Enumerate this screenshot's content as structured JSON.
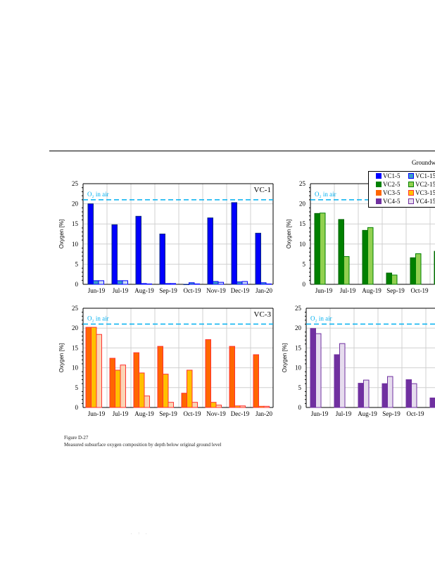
{
  "header": {
    "text": "Groundw"
  },
  "caption": {
    "figure": "Figure D-27",
    "text": "Measured subsurface oxygen composition by depth below original ground level"
  },
  "footer": {
    "text": ". : ."
  },
  "legend": {
    "items": [
      {
        "label": "VC1-5",
        "color": "#0000ff",
        "border": "#0000ff"
      },
      {
        "label": "VC1-15",
        "color": "#3a9cc8",
        "border": "#0000ff"
      },
      {
        "label": "VC2-5",
        "color": "#008000",
        "border": "#008000"
      },
      {
        "label": "VC2-15",
        "color": "#92d050",
        "border": "#008000"
      },
      {
        "label": "VC3-5",
        "color": "#ff6600",
        "border": "#ff6600"
      },
      {
        "label": "VC3-15",
        "color": "#ffc000",
        "border": "#ff3333"
      },
      {
        "label": "VC4-5",
        "color": "#7030a0",
        "border": "#7030a0"
      },
      {
        "label": "VC4-15",
        "color": "#e6dcee",
        "border": "#7030a0"
      }
    ]
  },
  "chart_data": [
    {
      "type": "bar",
      "title": "VC-1",
      "ylabel": "Oxygen [%]",
      "ylim": [
        0,
        25
      ],
      "yticks": [
        "0",
        "5",
        "10",
        "15",
        "20",
        "25"
      ],
      "grid": true,
      "reference": {
        "label": "O₂ in air",
        "value": 21,
        "color": "#00b0f0"
      },
      "categories": [
        "Jun-19",
        "Jul-19",
        "Aug-19",
        "Sep-19",
        "Oct-19",
        "Nov-19",
        "Dec-19",
        "Jan-20"
      ],
      "series": [
        {
          "name": "VC1-5",
          "color": "#0000ff",
          "border": "#0a2a80",
          "values": [
            20.0,
            14.8,
            16.9,
            12.5,
            0,
            16.5,
            20.3,
            12.7
          ]
        },
        {
          "name": "VC1-15",
          "color": "#3a9cc8",
          "border": "#0000ff",
          "values": [
            0.9,
            0.9,
            0.2,
            0.2,
            0.4,
            0.7,
            0.6,
            0.4
          ]
        },
        {
          "color": "#cfe0f2",
          "border": "#0000ff",
          "values": [
            0.9,
            0.9,
            0.1,
            0.2,
            0.1,
            0.5,
            0.7,
            0.1
          ]
        }
      ]
    },
    {
      "type": "bar",
      "title": "",
      "ylabel": "Oxygen [%]",
      "ylim": [
        0,
        25
      ],
      "yticks": [
        "0",
        "5",
        "10",
        "15",
        "20",
        "25"
      ],
      "grid": true,
      "reference": {
        "label": "O₂ in air",
        "value": 21,
        "color": "#00b0f0"
      },
      "categories": [
        "Jun-19",
        "Jul-19",
        "Aug-19",
        "Sep-19",
        "Oct-19",
        "N"
      ],
      "series": [
        {
          "name": "VC2-5",
          "color": "#008000",
          "border": "#006400",
          "values": [
            17.6,
            16.1,
            13.4,
            2.8,
            6.6,
            8.2
          ]
        },
        {
          "name": "VC2-15",
          "color": "#92d050",
          "border": "#008000",
          "values": [
            17.7,
            6.9,
            14.1,
            2.3,
            7.6,
            null
          ]
        }
      ]
    },
    {
      "type": "bar",
      "title": "VC-3",
      "ylabel": "Oxygen [%]",
      "ylim": [
        0,
        25
      ],
      "yticks": [
        "0",
        "5",
        "10",
        "15",
        "20",
        "25"
      ],
      "grid": true,
      "reference": {
        "label": "O₂ in air",
        "value": 21,
        "color": "#00b0f0"
      },
      "categories": [
        "Jun-19",
        "Jul-19",
        "Aug-19",
        "Sep-19",
        "Oct-19",
        "Nov-19",
        "Dec-19",
        "Jan-20"
      ],
      "series": [
        {
          "name": "VC3-5",
          "color": "#ff6600",
          "border": "#ff3333",
          "values": [
            20.2,
            12.4,
            13.8,
            15.4,
            3.6,
            17.1,
            15.4,
            13.3
          ]
        },
        {
          "name": "VC3-15",
          "color": "#ffc000",
          "border": "#ff3333",
          "values": [
            20.2,
            9.4,
            8.7,
            8.4,
            9.4,
            1.3,
            0.4,
            0.3
          ]
        },
        {
          "color": "#fbd5b5",
          "border": "#ff3333",
          "values": [
            18.4,
            10.7,
            2.9,
            1.3,
            1.3,
            0.6,
            0.4,
            0.3
          ]
        }
      ]
    },
    {
      "type": "bar",
      "title": "",
      "ylabel": "Oxygen [%]",
      "ylim": [
        0,
        25
      ],
      "yticks": [
        "0",
        "5",
        "10",
        "15",
        "20",
        "25"
      ],
      "grid": true,
      "reference": {
        "label": "O₂ in air",
        "value": 21,
        "color": "#00b0f0"
      },
      "categories": [
        "Jun-19",
        "Jul-19",
        "Aug-19",
        "Sep-19",
        "Oct-19",
        "No"
      ],
      "series": [
        {
          "name": "VC4-5",
          "color": "#7030a0",
          "border": "#7030a0",
          "values": [
            19.9,
            13.3,
            6.1,
            6.0,
            7.0,
            2.4
          ]
        },
        {
          "name": "VC4-15",
          "color": "#e6dcee",
          "border": "#7030a0",
          "values": [
            18.6,
            16.1,
            6.9,
            7.8,
            6.0,
            null
          ]
        }
      ]
    }
  ]
}
